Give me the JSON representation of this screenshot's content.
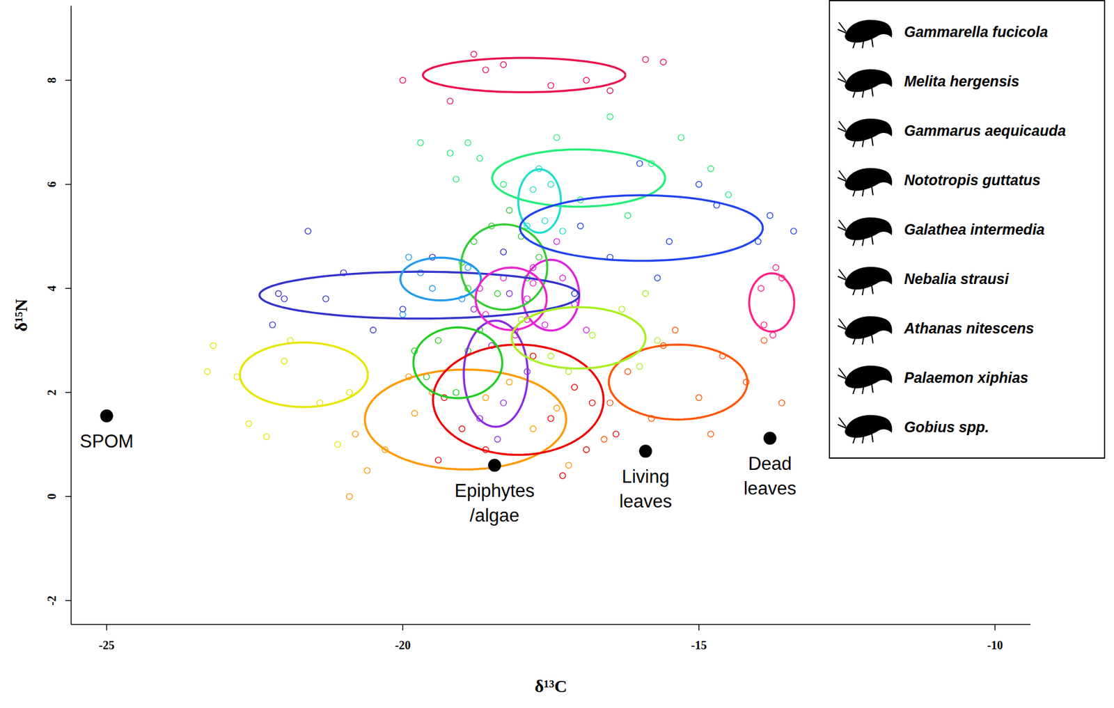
{
  "chart_data": {
    "type": "scatter",
    "xlabel": "δ¹³C",
    "ylabel": "δ¹⁵N",
    "xlim": [
      -25.6,
      -9.4
    ],
    "ylim": [
      -2.46,
      9.43
    ],
    "xticks": [
      -25,
      -20,
      -15,
      -10
    ],
    "yticks": [
      -2,
      0,
      2,
      4,
      6,
      8
    ],
    "legend": "upper right",
    "marker": "open_circle",
    "grid": false,
    "sources": [
      {
        "label": "SPOM",
        "x": -25.0,
        "y": 1.55
      },
      {
        "label": "Epiphytes /algae",
        "x": -18.45,
        "y": 0.6
      },
      {
        "label": "Living leaves",
        "x": -15.9,
        "y": 0.87
      },
      {
        "label": "Dead leaves",
        "x": -13.8,
        "y": 1.12
      }
    ],
    "series": [
      {
        "name": "Gammarella fucicola",
        "color": "#ff9900",
        "ellipse": {
          "cx": -18.94,
          "cy": 1.48,
          "rx": 1.7,
          "ry": 0.96
        },
        "x": [
          -20.8,
          -20.3,
          -19.8,
          -19.5,
          -18.6,
          -17.8,
          -17.4,
          -20.6,
          -19.9,
          -18.2,
          -17.2,
          -20.9
        ],
        "y": [
          1.2,
          0.9,
          1.6,
          2.0,
          1.9,
          1.3,
          1.7,
          0.5,
          2.3,
          2.2,
          0.6,
          0.0
        ]
      },
      {
        "name": "Melita hergensis",
        "color": "#e6e600",
        "ellipse": {
          "cx": -21.67,
          "cy": 2.34,
          "rx": 1.08,
          "ry": 0.62
        },
        "x": [
          -23.2,
          -23.3,
          -22.8,
          -22.3,
          -21.9,
          -21.4,
          -20.9,
          -22.6,
          -21.1,
          -22.0
        ],
        "y": [
          2.9,
          2.4,
          2.3,
          1.15,
          3.0,
          1.8,
          2.0,
          1.4,
          1.0,
          2.6
        ]
      },
      {
        "name": "Gammarus aequicauda",
        "color": "#ff5500",
        "ellipse": {
          "cx": -15.35,
          "cy": 2.2,
          "rx": 1.17,
          "ry": 0.72
        },
        "x": [
          -16.5,
          -16.2,
          -15.8,
          -15.4,
          -15.0,
          -14.6,
          -14.2,
          -13.6,
          -14.8,
          -16.6,
          -15.6,
          -13.9
        ],
        "y": [
          1.8,
          2.4,
          1.5,
          3.2,
          1.9,
          2.7,
          2.2,
          1.8,
          1.2,
          1.1,
          2.9,
          3.0
        ]
      },
      {
        "name": "Nototropis guttatus",
        "color": "#8a2be2",
        "ellipse": {
          "cx": -18.43,
          "cy": 2.36,
          "rx": 0.54,
          "ry": 1.02
        },
        "x": [
          -18.7,
          -18.3,
          -18.5,
          -18.1,
          -18.8,
          -17.9,
          -18.4,
          -18.2
        ],
        "y": [
          1.5,
          1.8,
          2.9,
          3.2,
          3.6,
          2.4,
          1.1,
          3.9
        ]
      },
      {
        "name": "Galathea intermedia",
        "color": "#dd22dd",
        "ellipse": {
          "cx": -17.5,
          "cy": 3.87,
          "rx": 0.48,
          "ry": 0.68
        },
        "x": [
          -17.8,
          -17.3,
          -17.6,
          -17.1,
          -17.9,
          -17.4,
          -16.9
        ],
        "y": [
          4.4,
          4.2,
          3.3,
          3.7,
          3.8,
          4.9,
          3.2
        ]
      },
      {
        "name": "Nebalia strausi",
        "color": "#ee0000",
        "ellipse": {
          "cx": -18.05,
          "cy": 1.86,
          "rx": 1.44,
          "ry": 1.06
        },
        "x": [
          -19.3,
          -19.0,
          -18.6,
          -17.5,
          -17.1,
          -16.8,
          -17.8,
          -19.4,
          -16.9,
          -17.3,
          -16.4
        ],
        "y": [
          1.9,
          1.3,
          0.9,
          1.5,
          2.1,
          1.8,
          2.7,
          0.7,
          0.9,
          0.4,
          1.2
        ]
      },
      {
        "name": "Athanas nitescens",
        "color": "#33cc33",
        "ellipse": {
          "cx": -18.29,
          "cy": 4.41,
          "rx": 0.73,
          "ry": 0.82
        },
        "x": [
          -18.8,
          -18.5,
          -18.0,
          -17.7,
          -18.9,
          -18.4,
          -17.9,
          -18.2,
          -19.0
        ],
        "y": [
          4.9,
          5.2,
          5.0,
          4.6,
          4.0,
          3.9,
          4.2,
          5.5,
          4.5
        ]
      },
      {
        "name": "Palaemon xiphias",
        "color": "#22ee77",
        "ellipse": {
          "cx": -17.03,
          "cy": 6.12,
          "rx": 1.46,
          "ry": 0.55
        },
        "x": [
          -19.7,
          -19.2,
          -18.7,
          -18.3,
          -17.4,
          -16.5,
          -15.8,
          -15.3,
          -14.8,
          -16.2,
          -14.5,
          -17.0,
          -18.9,
          -19.1
        ],
        "y": [
          6.8,
          6.6,
          6.5,
          6.0,
          6.9,
          7.3,
          6.4,
          6.9,
          6.3,
          5.4,
          5.8,
          5.7,
          6.8,
          6.1
        ]
      },
      {
        "name": "Gobius spp.",
        "color": "#e8124f",
        "ellipse": {
          "cx": -17.95,
          "cy": 8.1,
          "rx": 1.71,
          "ry": 0.33
        },
        "x": [
          -20.0,
          -19.2,
          -18.8,
          -18.6,
          -17.5,
          -16.9,
          -16.5,
          -15.9,
          -15.6,
          -18.3
        ],
        "y": [
          8.0,
          7.6,
          8.5,
          8.2,
          7.9,
          8.0,
          7.8,
          8.4,
          8.35,
          8.3
        ]
      },
      {
        "color": "#22ddcc",
        "ellipse": {
          "cx": -17.69,
          "cy": 5.68,
          "rx": 0.36,
          "ry": 0.61
        },
        "x": [
          -17.9,
          -17.6,
          -17.5,
          -17.8,
          -17.3,
          -17.7
        ],
        "y": [
          5.2,
          5.3,
          6.0,
          5.9,
          5.1,
          6.3
        ]
      },
      {
        "color": "#2244ee",
        "ellipse": {
          "cx": -15.97,
          "cy": 5.16,
          "rx": 2.05,
          "ry": 0.63
        },
        "x": [
          -17.0,
          -16.5,
          -15.7,
          -15.0,
          -14.7,
          -14.0,
          -13.4,
          -13.8,
          -16.0,
          -15.5
        ],
        "y": [
          5.2,
          4.6,
          4.2,
          6.0,
          5.6,
          4.9,
          5.1,
          5.4,
          6.4,
          4.9
        ]
      },
      {
        "color": "#3333cc",
        "ellipse": {
          "cx": -19.72,
          "cy": 3.87,
          "rx": 2.7,
          "ry": 0.45
        },
        "x": [
          -22.2,
          -22.0,
          -21.6,
          -21.3,
          -21.0,
          -20.5,
          -20.0,
          -19.5,
          -18.3,
          -17.1,
          -22.1
        ],
        "y": [
          3.3,
          3.8,
          5.1,
          3.8,
          4.3,
          3.2,
          3.6,
          4.6,
          4.7,
          3.9,
          3.9
        ]
      },
      {
        "color": "#2299ee",
        "ellipse": {
          "cx": -19.36,
          "cy": 4.18,
          "rx": 0.68,
          "ry": 0.41
        },
        "x": [
          -19.9,
          -19.5,
          -19.0,
          -18.9,
          -19.7,
          -20.0
        ],
        "y": [
          4.6,
          4.0,
          3.8,
          4.4,
          4.3,
          3.5
        ]
      },
      {
        "color": "#ee22cc",
        "ellipse": {
          "cx": -18.17,
          "cy": 3.8,
          "rx": 0.6,
          "ry": 0.6
        },
        "x": [
          -18.6,
          -18.3,
          -17.9,
          -18.7,
          -17.8,
          -18.1
        ],
        "y": [
          3.5,
          4.2,
          3.4,
          4.0,
          4.1,
          3.1
        ]
      },
      {
        "color": "#aaee22",
        "ellipse": {
          "cx": -17.03,
          "cy": 3.05,
          "rx": 1.13,
          "ry": 0.59
        },
        "x": [
          -18.0,
          -17.5,
          -16.8,
          -16.3,
          -16.0,
          -15.7,
          -17.2,
          -15.9
        ],
        "y": [
          3.4,
          2.7,
          3.1,
          3.6,
          2.5,
          3.0,
          2.4,
          3.9
        ]
      },
      {
        "color": "#22cc22",
        "ellipse": {
          "cx": -19.07,
          "cy": 2.57,
          "rx": 0.75,
          "ry": 0.68
        },
        "x": [
          -19.6,
          -19.4,
          -18.9,
          -18.7,
          -19.8,
          -19.1
        ],
        "y": [
          2.3,
          3.0,
          2.8,
          3.2,
          2.8,
          2.0
        ]
      },
      {
        "color": "#ff2288",
        "ellipse": {
          "cx": -13.77,
          "cy": 3.73,
          "rx": 0.38,
          "ry": 0.56
        },
        "x": [
          -13.9,
          -13.6,
          -13.75,
          -13.7,
          -13.95
        ],
        "y": [
          3.3,
          4.2,
          3.1,
          4.4,
          4.0
        ]
      }
    ]
  }
}
